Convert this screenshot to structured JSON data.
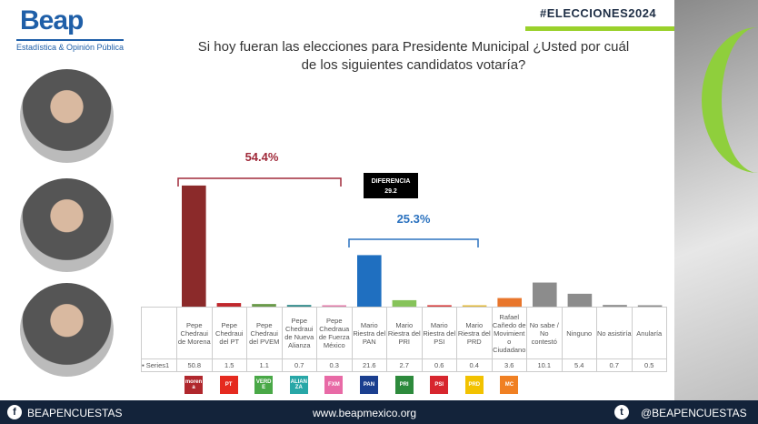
{
  "header": {
    "brand": "Beap",
    "brand_sub": "Estadística & Opinión Pública",
    "hashtag": "#ELECCIONES2024",
    "title_line1": "Si hoy fueran las elecciones para Presidente Municipal ¿Usted por cuál",
    "title_line2": "de los siguientes candidatos votaría?"
  },
  "chart_data": {
    "type": "bar",
    "series_label": "Series1",
    "categories": [
      "Pepe Chedraui de Morena",
      "Pepe Chedraui del PT",
      "Pepe Chedraui del PVEM",
      "Pepe Chedraui de Nueva Alianza",
      "Pepe Chedraua de Fuerza México",
      "Mario Riestra del PAN",
      "Mario Riestra del PRI",
      "Mario Riestra del PSI",
      "Mario Riestra del PRD",
      "Rafael Cañedo de Movimiento Ciudadano",
      "No sabe / No contestó",
      "Ninguno",
      "No asistiría",
      "Anularía"
    ],
    "values": [
      50.8,
      1.5,
      1.1,
      0.7,
      0.3,
      21.6,
      2.7,
      0.6,
      0.4,
      3.6,
      10.1,
      5.4,
      0.7,
      0.5
    ],
    "colors": [
      "#8b2a2a",
      "#c0282d",
      "#6a9a4a",
      "#2f8a8a",
      "#e07aa8",
      "#1f6fc0",
      "#86c35a",
      "#d63a3a",
      "#e2b93b",
      "#e8762c",
      "#8c8c8c",
      "#8c8c8c",
      "#8c8c8c",
      "#8c8c8c"
    ],
    "annotations": {
      "group1": "54.4%",
      "group2": "25.3%",
      "diff_label": "DIFERENCIA",
      "diff_value": "29.2"
    }
  },
  "party_logos": [
    {
      "name": "morena",
      "color": "#b0272d"
    },
    {
      "name": "PT",
      "color": "#e52a1f"
    },
    {
      "name": "VERDE",
      "color": "#49a847"
    },
    {
      "name": "ALIANZA",
      "color": "#28a7a7"
    },
    {
      "name": "FXM",
      "color": "#e86aa6"
    },
    {
      "name": "PAN",
      "color": "#1b3f8f"
    },
    {
      "name": "PRI",
      "color": "#2d8a3c"
    },
    {
      "name": "PSI",
      "color": "#d7262e"
    },
    {
      "name": "PRD",
      "color": "#f2c200"
    },
    {
      "name": "MC",
      "color": "#f08023"
    }
  ],
  "footer": {
    "facebook": "BEAPENCUESTAS",
    "website": "www.beapmexico.org",
    "twitter": "@BEAPENCUESTAS"
  }
}
